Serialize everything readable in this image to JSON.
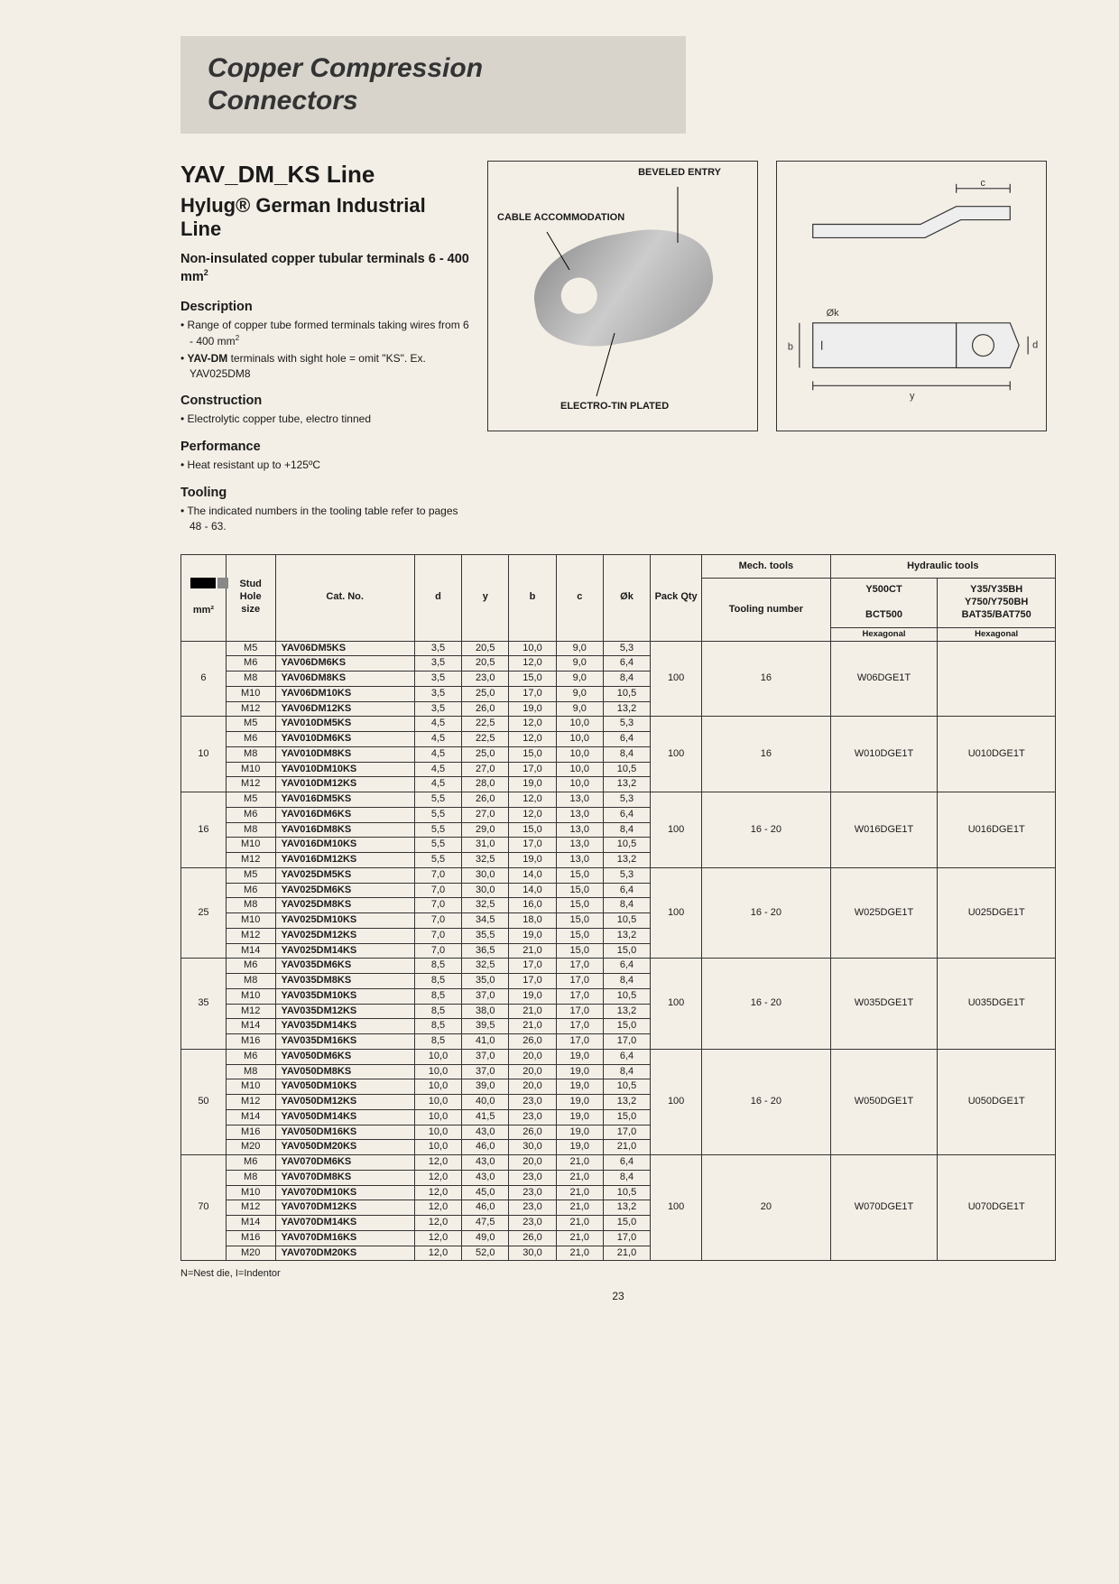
{
  "banner": {
    "line1": "Copper Compression",
    "line2": "Connectors"
  },
  "header": {
    "line_name": "YAV_DM_KS Line",
    "subtitle": "Hylug® German Industrial Line",
    "tagline_a": "Non-insulated copper tubular terminals 6 - 400 mm",
    "tagline_sup": "2"
  },
  "sections": {
    "desc_h": "Description",
    "desc_1a": "Range of copper tube formed terminals taking wires from 6 - 400 mm",
    "desc_1sup": "2",
    "desc_2": "YAV-DM terminals with sight hole = omit \"KS\". Ex. YAV025DM8",
    "cons_h": "Construction",
    "cons_1": "Electrolytic copper tube, electro tinned",
    "perf_h": "Performance",
    "perf_1": "Heat resistant up to +125ºC",
    "tool_h": "Tooling",
    "tool_1": "The indicated numbers in the tooling table refer to pages 48 - 63."
  },
  "diagram_labels": {
    "bevel": "BEVELED ENTRY",
    "cable": "CABLE ACCOMMODATION",
    "plate": "ELECTRO-TIN PLATED"
  },
  "tech_labels": {
    "c": "c",
    "b": "b",
    "ok": "Øk",
    "d": "d",
    "y": "y"
  },
  "table": {
    "headers": {
      "mm2_top": "",
      "mm2_bot": "mm²",
      "stud": "Stud Hole size",
      "catno": "Cat. No.",
      "d": "d",
      "y": "y",
      "b": "b",
      "c": "c",
      "ok": "Øk",
      "pack": "Pack Qty",
      "mech": "Mech. tools",
      "hyd": "Hydraulic tools",
      "tooling": "Tooling number",
      "y500": "Y500CT",
      "bct": "BCT500",
      "y35_1": "Y35/Y35BH",
      "y35_2": "Y750/Y750BH",
      "y35_3": "BAT35/BAT750",
      "hex": "Hexagonal"
    },
    "groups": [
      {
        "mm2": "6",
        "pack": "100",
        "tool": "16",
        "mech": "W06DGE1T",
        "hyd": "",
        "rows": [
          [
            "M5",
            "YAV06DM5KS",
            "3,5",
            "20,5",
            "10,0",
            "9,0",
            "5,3"
          ],
          [
            "M6",
            "YAV06DM6KS",
            "3,5",
            "20,5",
            "12,0",
            "9,0",
            "6,4"
          ],
          [
            "M8",
            "YAV06DM8KS",
            "3,5",
            "23,0",
            "15,0",
            "9,0",
            "8,4"
          ],
          [
            "M10",
            "YAV06DM10KS",
            "3,5",
            "25,0",
            "17,0",
            "9,0",
            "10,5"
          ],
          [
            "M12",
            "YAV06DM12KS",
            "3,5",
            "26,0",
            "19,0",
            "9,0",
            "13,2"
          ]
        ]
      },
      {
        "mm2": "10",
        "pack": "100",
        "tool": "16",
        "mech": "W010DGE1T",
        "hyd": "U010DGE1T",
        "rows": [
          [
            "M5",
            "YAV010DM5KS",
            "4,5",
            "22,5",
            "12,0",
            "10,0",
            "5,3"
          ],
          [
            "M6",
            "YAV010DM6KS",
            "4,5",
            "22,5",
            "12,0",
            "10,0",
            "6,4"
          ],
          [
            "M8",
            "YAV010DM8KS",
            "4,5",
            "25,0",
            "15,0",
            "10,0",
            "8,4"
          ],
          [
            "M10",
            "YAV010DM10KS",
            "4,5",
            "27,0",
            "17,0",
            "10,0",
            "10,5"
          ],
          [
            "M12",
            "YAV010DM12KS",
            "4,5",
            "28,0",
            "19,0",
            "10,0",
            "13,2"
          ]
        ]
      },
      {
        "mm2": "16",
        "pack": "100",
        "tool": "16 - 20",
        "mech": "W016DGE1T",
        "hyd": "U016DGE1T",
        "rows": [
          [
            "M5",
            "YAV016DM5KS",
            "5,5",
            "26,0",
            "12,0",
            "13,0",
            "5,3"
          ],
          [
            "M6",
            "YAV016DM6KS",
            "5,5",
            "27,0",
            "12,0",
            "13,0",
            "6,4"
          ],
          [
            "M8",
            "YAV016DM8KS",
            "5,5",
            "29,0",
            "15,0",
            "13,0",
            "8,4"
          ],
          [
            "M10",
            "YAV016DM10KS",
            "5,5",
            "31,0",
            "17,0",
            "13,0",
            "10,5"
          ],
          [
            "M12",
            "YAV016DM12KS",
            "5,5",
            "32,5",
            "19,0",
            "13,0",
            "13,2"
          ]
        ]
      },
      {
        "mm2": "25",
        "pack": "100",
        "tool": "16 - 20",
        "mech": "W025DGE1T",
        "hyd": "U025DGE1T",
        "rows": [
          [
            "M5",
            "YAV025DM5KS",
            "7,0",
            "30,0",
            "14,0",
            "15,0",
            "5,3"
          ],
          [
            "M6",
            "YAV025DM6KS",
            "7,0",
            "30,0",
            "14,0",
            "15,0",
            "6,4"
          ],
          [
            "M8",
            "YAV025DM8KS",
            "7,0",
            "32,5",
            "16,0",
            "15,0",
            "8,4"
          ],
          [
            "M10",
            "YAV025DM10KS",
            "7,0",
            "34,5",
            "18,0",
            "15,0",
            "10,5"
          ],
          [
            "M12",
            "YAV025DM12KS",
            "7,0",
            "35,5",
            "19,0",
            "15,0",
            "13,2"
          ],
          [
            "M14",
            "YAV025DM14KS",
            "7,0",
            "36,5",
            "21,0",
            "15,0",
            "15,0"
          ]
        ]
      },
      {
        "mm2": "35",
        "pack": "100",
        "tool": "16 - 20",
        "mech": "W035DGE1T",
        "hyd": "U035DGE1T",
        "rows": [
          [
            "M6",
            "YAV035DM6KS",
            "8,5",
            "32,5",
            "17,0",
            "17,0",
            "6,4"
          ],
          [
            "M8",
            "YAV035DM8KS",
            "8,5",
            "35,0",
            "17,0",
            "17,0",
            "8,4"
          ],
          [
            "M10",
            "YAV035DM10KS",
            "8,5",
            "37,0",
            "19,0",
            "17,0",
            "10,5"
          ],
          [
            "M12",
            "YAV035DM12KS",
            "8,5",
            "38,0",
            "21,0",
            "17,0",
            "13,2"
          ],
          [
            "M14",
            "YAV035DM14KS",
            "8,5",
            "39,5",
            "21,0",
            "17,0",
            "15,0"
          ],
          [
            "M16",
            "YAV035DM16KS",
            "8,5",
            "41,0",
            "26,0",
            "17,0",
            "17,0"
          ]
        ]
      },
      {
        "mm2": "50",
        "pack": "100",
        "tool": "16 - 20",
        "mech": "W050DGE1T",
        "hyd": "U050DGE1T",
        "rows": [
          [
            "M6",
            "YAV050DM6KS",
            "10,0",
            "37,0",
            "20,0",
            "19,0",
            "6,4"
          ],
          [
            "M8",
            "YAV050DM8KS",
            "10,0",
            "37,0",
            "20,0",
            "19,0",
            "8,4"
          ],
          [
            "M10",
            "YAV050DM10KS",
            "10,0",
            "39,0",
            "20,0",
            "19,0",
            "10,5"
          ],
          [
            "M12",
            "YAV050DM12KS",
            "10,0",
            "40,0",
            "23,0",
            "19,0",
            "13,2"
          ],
          [
            "M14",
            "YAV050DM14KS",
            "10,0",
            "41,5",
            "23,0",
            "19,0",
            "15,0"
          ],
          [
            "M16",
            "YAV050DM16KS",
            "10,0",
            "43,0",
            "26,0",
            "19,0",
            "17,0"
          ],
          [
            "M20",
            "YAV050DM20KS",
            "10,0",
            "46,0",
            "30,0",
            "19,0",
            "21,0"
          ]
        ]
      },
      {
        "mm2": "70",
        "pack": "100",
        "tool": "20",
        "mech": "W070DGE1T",
        "hyd": "U070DGE1T",
        "rows": [
          [
            "M6",
            "YAV070DM6KS",
            "12,0",
            "43,0",
            "20,0",
            "21,0",
            "6,4"
          ],
          [
            "M8",
            "YAV070DM8KS",
            "12,0",
            "43,0",
            "23,0",
            "21,0",
            "8,4"
          ],
          [
            "M10",
            "YAV070DM10KS",
            "12,0",
            "45,0",
            "23,0",
            "21,0",
            "10,5"
          ],
          [
            "M12",
            "YAV070DM12KS",
            "12,0",
            "46,0",
            "23,0",
            "21,0",
            "13,2"
          ],
          [
            "M14",
            "YAV070DM14KS",
            "12,0",
            "47,5",
            "23,0",
            "21,0",
            "15,0"
          ],
          [
            "M16",
            "YAV070DM16KS",
            "12,0",
            "49,0",
            "26,0",
            "21,0",
            "17,0"
          ],
          [
            "M20",
            "YAV070DM20KS",
            "12,0",
            "52,0",
            "30,0",
            "21,0",
            "21,0"
          ]
        ]
      }
    ]
  },
  "footnote": "N=Nest die, I=Indentor",
  "page_number": "23"
}
